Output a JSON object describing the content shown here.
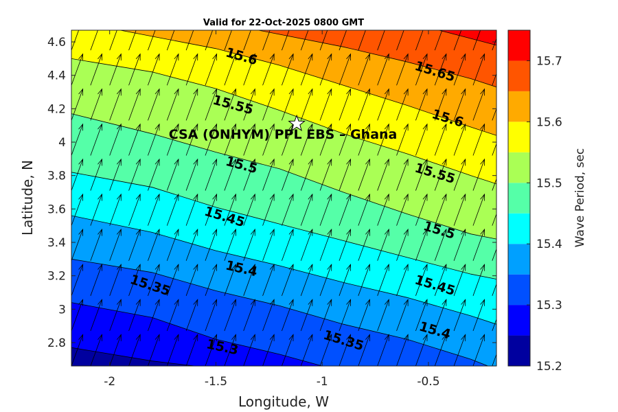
{
  "chart_data": {
    "type": "contour",
    "title": "Valid for 22-Oct-2025 0800 GMT",
    "xlabel": "Longitude, W",
    "ylabel": "Latitude, N",
    "xlim": [
      -2.18,
      -0.18
    ],
    "ylim": [
      2.66,
      4.67
    ],
    "x_ticks": [
      -2,
      -1.5,
      -1,
      -0.5
    ],
    "x_tick_labels": [
      "-2",
      "-1.5",
      "-1",
      "-0.5"
    ],
    "y_ticks": [
      2.8,
      3.0,
      3.2,
      3.4,
      3.6,
      3.8,
      4.0,
      4.2,
      4.4,
      4.6
    ],
    "y_tick_labels": [
      "2.8",
      "3",
      "3.2",
      "3.4",
      "3.6",
      "3.8",
      "4",
      "4.2",
      "4.4",
      "4.6"
    ],
    "colorbar": {
      "label": "Wave Period, sec",
      "range": [
        15.2,
        15.75
      ],
      "ticks": [
        15.2,
        15.3,
        15.4,
        15.5,
        15.6,
        15.7
      ],
      "tick_labels": [
        "15.2",
        "15.3",
        "15.4",
        "15.5",
        "15.6",
        "15.7"
      ],
      "levels": [
        15.2,
        15.25,
        15.3,
        15.35,
        15.4,
        15.45,
        15.5,
        15.55,
        15.6,
        15.65,
        15.7,
        15.75
      ],
      "colors": [
        "#00009f",
        "#0000ff",
        "#0050ff",
        "#00a0ff",
        "#00ffff",
        "#55ffa8",
        "#aaff55",
        "#ffff00",
        "#ffaa00",
        "#ff5500",
        "#ff0000"
      ]
    },
    "contours": [
      {
        "level": 15.25,
        "points": [
          [
            -2.18,
            2.77
          ],
          [
            -1.8,
            2.69
          ],
          [
            -1.6,
            2.66
          ]
        ]
      },
      {
        "level": 15.3,
        "points": [
          [
            -2.18,
            3.04
          ],
          [
            -1.8,
            2.95
          ],
          [
            -1.5,
            2.82
          ],
          [
            -1.2,
            2.73
          ],
          [
            -1.0,
            2.66
          ]
        ]
      },
      {
        "level": 15.35,
        "points": [
          [
            -2.18,
            3.3
          ],
          [
            -1.8,
            3.22
          ],
          [
            -1.5,
            3.11
          ],
          [
            -1.2,
            3.02
          ],
          [
            -0.9,
            2.91
          ],
          [
            -0.6,
            2.82
          ],
          [
            -0.3,
            2.7
          ],
          [
            -0.22,
            2.66
          ]
        ]
      },
      {
        "level": 15.4,
        "points": [
          [
            -2.18,
            3.56
          ],
          [
            -1.8,
            3.46
          ],
          [
            -1.5,
            3.35
          ],
          [
            -1.2,
            3.26
          ],
          [
            -0.9,
            3.16
          ],
          [
            -0.6,
            3.07
          ],
          [
            -0.3,
            2.96
          ],
          [
            -0.18,
            2.91
          ]
        ]
      },
      {
        "level": 15.45,
        "points": [
          [
            -2.18,
            3.82
          ],
          [
            -1.8,
            3.73
          ],
          [
            -1.5,
            3.61
          ],
          [
            -1.2,
            3.51
          ],
          [
            -0.9,
            3.41
          ],
          [
            -0.6,
            3.31
          ],
          [
            -0.3,
            3.21
          ],
          [
            -0.18,
            3.18
          ]
        ]
      },
      {
        "level": 15.5,
        "points": [
          [
            -2.18,
            4.17
          ],
          [
            -1.8,
            4.05
          ],
          [
            -1.5,
            3.94
          ],
          [
            -1.2,
            3.84
          ],
          [
            -0.9,
            3.7
          ],
          [
            -0.6,
            3.57
          ],
          [
            -0.3,
            3.45
          ],
          [
            -0.18,
            3.42
          ]
        ]
      },
      {
        "level": 15.55,
        "points": [
          [
            -2.18,
            4.5
          ],
          [
            -1.8,
            4.42
          ],
          [
            -1.5,
            4.32
          ],
          [
            -1.2,
            4.19
          ],
          [
            -0.9,
            4.05
          ],
          [
            -0.6,
            3.93
          ],
          [
            -0.3,
            3.8
          ],
          [
            -0.18,
            3.75
          ]
        ]
      },
      {
        "level": 15.6,
        "points": [
          [
            -1.95,
            4.67
          ],
          [
            -1.5,
            4.56
          ],
          [
            -1.2,
            4.46
          ],
          [
            -0.9,
            4.34
          ],
          [
            -0.6,
            4.22
          ],
          [
            -0.3,
            4.09
          ],
          [
            -0.18,
            4.04
          ]
        ]
      },
      {
        "level": 15.65,
        "points": [
          [
            -1.3,
            4.67
          ],
          [
            -0.9,
            4.57
          ],
          [
            -0.6,
            4.48
          ],
          [
            -0.3,
            4.38
          ],
          [
            -0.18,
            4.33
          ]
        ]
      },
      {
        "level": 15.7,
        "points": [
          [
            -0.45,
            4.67
          ],
          [
            -0.18,
            4.58
          ]
        ]
      }
    ],
    "contour_labels": [
      {
        "text": "15.3",
        "x": -1.47,
        "y": 2.77,
        "angle": 12
      },
      {
        "text": "15.35",
        "x": -1.81,
        "y": 3.14,
        "angle": 18
      },
      {
        "text": "15.35",
        "x": -0.9,
        "y": 2.81,
        "angle": 17
      },
      {
        "text": "15.4",
        "x": -1.38,
        "y": 3.24,
        "angle": 13
      },
      {
        "text": "15.4",
        "x": -0.47,
        "y": 2.87,
        "angle": 16
      },
      {
        "text": "15.45",
        "x": -1.46,
        "y": 3.55,
        "angle": 17
      },
      {
        "text": "15.45",
        "x": -0.47,
        "y": 3.14,
        "angle": 17
      },
      {
        "text": "15.5",
        "x": -1.38,
        "y": 3.86,
        "angle": 15
      },
      {
        "text": "15.5",
        "x": -0.45,
        "y": 3.47,
        "angle": 17
      },
      {
        "text": "15.55",
        "x": -1.42,
        "y": 4.22,
        "angle": 15
      },
      {
        "text": "15.55",
        "x": -0.47,
        "y": 3.81,
        "angle": 17
      },
      {
        "text": "15.6",
        "x": -1.38,
        "y": 4.51,
        "angle": 16
      },
      {
        "text": "15.6",
        "x": -0.41,
        "y": 4.14,
        "angle": 17
      },
      {
        "text": "15.65",
        "x": -0.47,
        "y": 4.42,
        "angle": 17
      }
    ],
    "vectors": {
      "x": [
        -2.18,
        -2.09,
        -2.0,
        -1.91,
        -1.82,
        -1.73,
        -1.64,
        -1.55,
        -1.46,
        -1.37,
        -1.28,
        -1.19,
        -1.1,
        -1.01,
        -0.92,
        -0.83,
        -0.74,
        -0.65,
        -0.56,
        -0.47,
        -0.38,
        -0.29,
        -0.2
      ],
      "y": [
        2.66,
        2.87,
        3.08,
        3.29,
        3.5,
        3.71,
        3.92,
        4.13,
        4.34,
        4.55
      ],
      "direction_deg": 20,
      "length_deg_lat": 0.2
    },
    "annotations": [
      {
        "type": "marker",
        "symbol": "star",
        "x": -1.12,
        "y": 4.11
      },
      {
        "type": "text",
        "text": "CSA (ONHYM) PPL EBS  – Ghana",
        "x": -1.12,
        "y": 4.05
      }
    ]
  }
}
